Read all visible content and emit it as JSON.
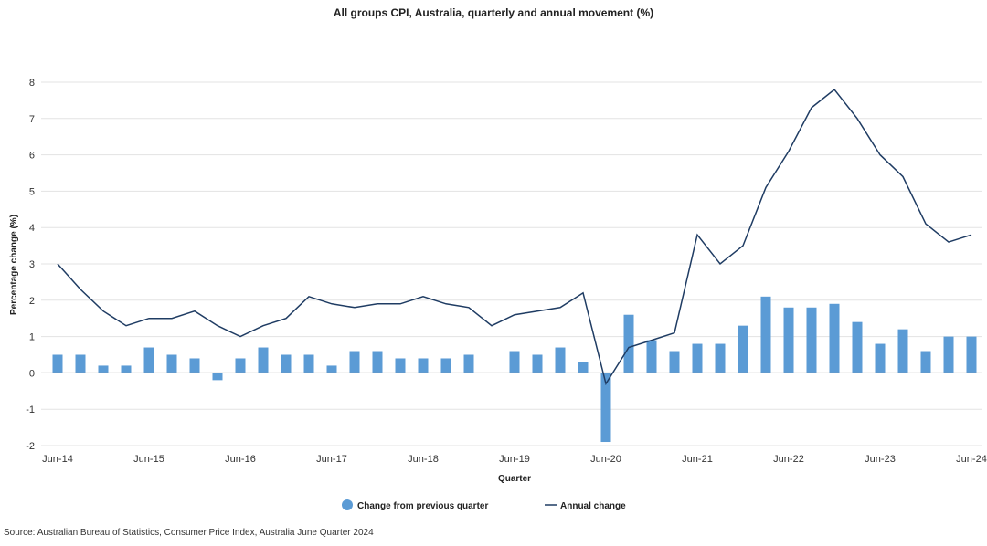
{
  "chart_data": {
    "type": "bar",
    "title": "All groups CPI, Australia, quarterly and annual movement (%)",
    "xlabel": "Quarter",
    "ylabel": "Percentage change (%)",
    "ylim": [
      -2,
      8
    ],
    "yticks": [
      -2,
      -1,
      0,
      1,
      2,
      3,
      4,
      5,
      6,
      7,
      8
    ],
    "grid": true,
    "legend_position": "bottom",
    "categories": [
      "Jun-14",
      "Sep-14",
      "Dec-14",
      "Mar-15",
      "Jun-15",
      "Sep-15",
      "Dec-15",
      "Mar-16",
      "Jun-16",
      "Sep-16",
      "Dec-16",
      "Mar-17",
      "Jun-17",
      "Sep-17",
      "Dec-17",
      "Mar-18",
      "Jun-18",
      "Sep-18",
      "Dec-18",
      "Mar-19",
      "Jun-19",
      "Sep-19",
      "Dec-19",
      "Mar-20",
      "Jun-20",
      "Sep-20",
      "Dec-20",
      "Mar-21",
      "Jun-21",
      "Sep-21",
      "Dec-21",
      "Mar-22",
      "Jun-22",
      "Sep-22",
      "Dec-22",
      "Mar-23",
      "Jun-23",
      "Sep-23",
      "Dec-23",
      "Mar-24",
      "Jun-24"
    ],
    "tick_labels": [
      "Jun-14",
      "Jun-15",
      "Jun-16",
      "Jun-17",
      "Jun-18",
      "Jun-19",
      "Jun-20",
      "Jun-21",
      "Jun-22",
      "Jun-23",
      "Jun-24"
    ],
    "series": [
      {
        "name": "Change from previous quarter",
        "type": "bar",
        "color": "#5b9bd5",
        "values": [
          0.5,
          0.5,
          0.2,
          0.2,
          0.7,
          0.5,
          0.4,
          -0.2,
          0.4,
          0.7,
          0.5,
          0.5,
          0.2,
          0.6,
          0.6,
          0.4,
          0.4,
          0.4,
          0.5,
          0.0,
          0.6,
          0.5,
          0.7,
          0.3,
          -1.9,
          1.6,
          0.9,
          0.6,
          0.8,
          0.8,
          1.3,
          2.1,
          1.8,
          1.8,
          1.9,
          1.4,
          0.8,
          1.2,
          0.6,
          1.0,
          1.0
        ]
      },
      {
        "name": "Annual change",
        "type": "line",
        "color": "#1f3c63",
        "values": [
          3.0,
          2.3,
          1.7,
          1.3,
          1.5,
          1.5,
          1.7,
          1.3,
          1.0,
          1.3,
          1.5,
          2.1,
          1.9,
          1.8,
          1.9,
          1.9,
          2.1,
          1.9,
          1.8,
          1.3,
          1.6,
          1.7,
          1.8,
          2.2,
          -0.3,
          0.7,
          0.9,
          1.1,
          3.8,
          3.0,
          3.5,
          5.1,
          6.1,
          7.3,
          7.8,
          7.0,
          6.0,
          5.4,
          4.1,
          3.6,
          3.8
        ]
      }
    ]
  },
  "source_note": "Source: Australian Bureau of Statistics, Consumer Price Index, Australia June Quarter 2024"
}
